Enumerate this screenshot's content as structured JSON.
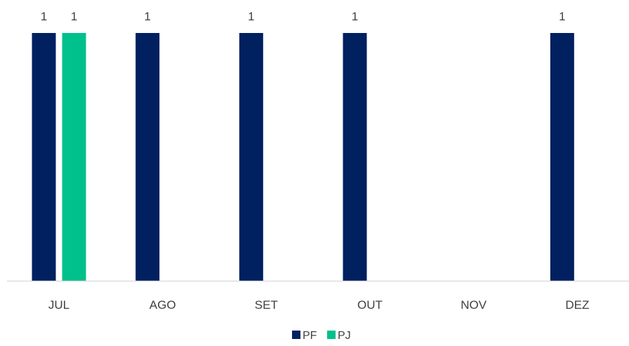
{
  "chart_data": {
    "type": "bar",
    "categories": [
      "JUL",
      "AGO",
      "SET",
      "OUT",
      "NOV",
      "DEZ"
    ],
    "series": [
      {
        "name": "PF",
        "values": [
          1,
          1,
          1,
          1,
          null,
          1
        ],
        "color": "#002060"
      },
      {
        "name": "PJ",
        "values": [
          1,
          null,
          null,
          null,
          null,
          null
        ],
        "color": "#00C08B"
      }
    ],
    "ylim": [
      0,
      1
    ],
    "grid": false,
    "data_labels": true,
    "legend_position": "bottom",
    "axis_color": "#D9D9D9"
  }
}
